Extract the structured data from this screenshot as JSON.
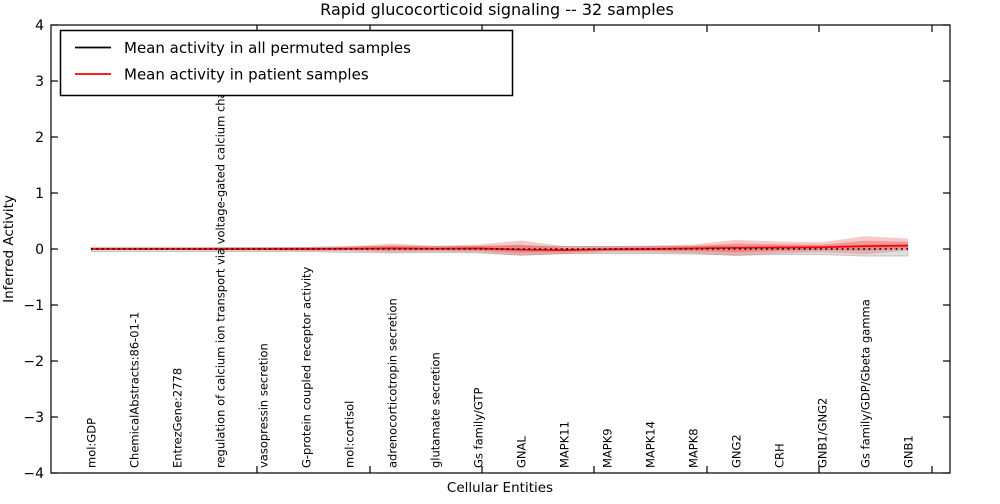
{
  "figure": {
    "title": "Rapid glucocorticoid signaling -- 32 samples",
    "xlabel": "Cellular Entities",
    "ylabel": "Inferred Activity",
    "legend": {
      "entries": [
        {
          "label": "Mean activity in all permuted samples",
          "color": "#000000"
        },
        {
          "label": "Mean activity in patient samples",
          "color": "#ff0000"
        }
      ]
    }
  },
  "chart_data": {
    "type": "line",
    "title": "Rapid glucocorticoid signaling -- 32 samples",
    "xlabel": "Cellular Entities",
    "ylabel": "Inferred Activity",
    "ylim": [
      -4,
      4
    ],
    "yticks": [
      -4,
      -3,
      -2,
      -1,
      0,
      1,
      2,
      3,
      4
    ],
    "grid": false,
    "legend_position": "upper left",
    "categories": [
      "mol:GDP",
      "ChemicalAbstracts:86-01-1",
      "EntrezGene:2778",
      "regulation of calcium ion transport via voltage-gated calcium channels",
      "vasopressin secretion",
      "G-protein coupled receptor activity",
      "mol:cortisol",
      "adrenocorticotropin secretion",
      "glutamate secretion",
      "Gs family/GTP",
      "GNAL",
      "MAPK11",
      "MAPK9",
      "MAPK14",
      "MAPK8",
      "GNG2",
      "CRH",
      "GNB1/GNG2",
      "Gs family/GDP/Gbeta gamma",
      "GNB1"
    ],
    "series": [
      {
        "name": "Mean activity in all permuted samples",
        "color": "#000000",
        "style": "dotted",
        "values": [
          0,
          0,
          0,
          0,
          0,
          0,
          0,
          0,
          0,
          0,
          0,
          0,
          0,
          0,
          0,
          0,
          0,
          0,
          0,
          0
        ],
        "band_upper": [
          0.03,
          0.03,
          0.03,
          0.03,
          0.03,
          0.03,
          0.04,
          0.05,
          0.045,
          0.05,
          0.05,
          0.045,
          0.045,
          0.045,
          0.05,
          0.05,
          0.05,
          0.05,
          0.07,
          0.07
        ],
        "band_lower": [
          -0.045,
          -0.045,
          -0.045,
          -0.045,
          -0.045,
          -0.045,
          -0.06,
          -0.07,
          -0.065,
          -0.07,
          -0.11,
          -0.08,
          -0.08,
          -0.08,
          -0.09,
          -0.11,
          -0.1,
          -0.1,
          -0.125,
          -0.125
        ]
      },
      {
        "name": "Mean activity in patient samples",
        "color": "#ff0000",
        "style": "solid",
        "values": [
          0,
          0,
          0,
          0,
          0,
          0,
          0.005,
          0.01,
          0.005,
          0.01,
          -0.01,
          -0.02,
          -0.005,
          0,
          0.01,
          0.02,
          0.025,
          0.03,
          0.05,
          0.06
        ],
        "band_upper": [
          0.018,
          0.018,
          0.018,
          0.027,
          0.027,
          0.036,
          0.05,
          0.099,
          0.059,
          0.081,
          0.151,
          0.051,
          0.049,
          0.063,
          0.081,
          0.163,
          0.132,
          0.119,
          0.229,
          0.185
        ],
        "band_lower": [
          -0.018,
          -0.018,
          -0.018,
          -0.027,
          -0.027,
          -0.036,
          -0.04,
          -0.061,
          -0.049,
          -0.061,
          -0.117,
          -0.091,
          -0.059,
          -0.063,
          -0.079,
          -0.123,
          -0.082,
          -0.059,
          -0.093,
          -0.029
        ],
        "band_inner_upper": [
          0.01,
          0.01,
          0.01,
          0.015,
          0.015,
          0.02,
          0.03,
          0.059,
          0.035,
          0.049,
          0.079,
          0.019,
          0.025,
          0.035,
          0.049,
          0.099,
          0.084,
          0.079,
          0.148,
          0.129
        ],
        "band_inner_lower": [
          -0.01,
          -0.01,
          -0.01,
          -0.015,
          -0.015,
          -0.02,
          -0.02,
          -0.029,
          -0.025,
          -0.029,
          -0.069,
          -0.059,
          -0.035,
          -0.035,
          -0.039,
          -0.059,
          -0.034,
          -0.019,
          -0.029,
          0.011
        ]
      }
    ]
  }
}
